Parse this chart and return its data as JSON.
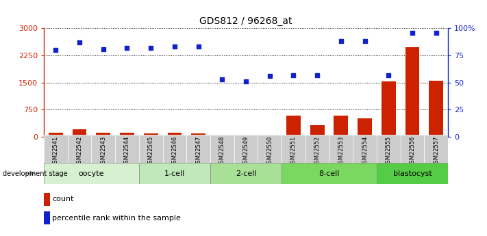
{
  "title": "GDS812 / 96268_at",
  "samples": [
    "GSM22541",
    "GSM22542",
    "GSM22543",
    "GSM22544",
    "GSM22545",
    "GSM22546",
    "GSM22547",
    "GSM22548",
    "GSM22549",
    "GSM22550",
    "GSM22551",
    "GSM22552",
    "GSM22553",
    "GSM22554",
    "GSM22555",
    "GSM22556",
    "GSM22557"
  ],
  "counts": [
    110,
    210,
    120,
    120,
    100,
    115,
    105,
    30,
    25,
    45,
    590,
    330,
    580,
    520,
    1540,
    2480,
    1560
  ],
  "pct_values": [
    80,
    87,
    81,
    82,
    82,
    83,
    83,
    53,
    51,
    56,
    57,
    57,
    88,
    88,
    57,
    96,
    96
  ],
  "stages": [
    {
      "label": "oocyte",
      "start": 0,
      "end": 4,
      "color": "#d6f0d0"
    },
    {
      "label": "1-cell",
      "start": 4,
      "end": 7,
      "color": "#c0e8b8"
    },
    {
      "label": "2-cell",
      "start": 7,
      "end": 10,
      "color": "#a8e098"
    },
    {
      "label": "8-cell",
      "start": 10,
      "end": 14,
      "color": "#78d860"
    },
    {
      "label": "blastocyst",
      "start": 14,
      "end": 17,
      "color": "#55cc45"
    }
  ],
  "bar_color": "#cc2200",
  "dot_color": "#1122cc",
  "left_ylim": [
    0,
    3000
  ],
  "left_yticks": [
    0,
    750,
    1500,
    2250,
    3000
  ],
  "right_ylim": [
    0,
    100
  ],
  "right_yticks": [
    0,
    25,
    50,
    75,
    100
  ],
  "bg_color": "#ffffff",
  "legend_count_label": "count",
  "legend_pct_label": "percentile rank within the sample"
}
